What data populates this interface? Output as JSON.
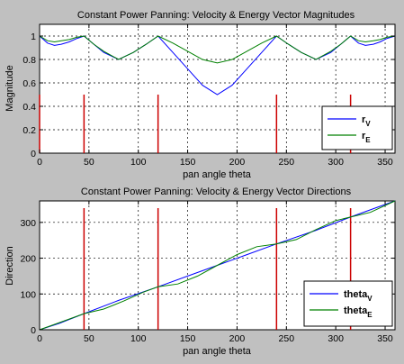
{
  "chart_data": [
    {
      "type": "line",
      "title": "Constant Power Panning: Velocity & Energy Vector Magnitudes",
      "xlabel": "pan angle theta",
      "ylabel": "Magnitude",
      "xlim": [
        0,
        360
      ],
      "ylim": [
        0,
        1.1
      ],
      "xticks": [
        0,
        50,
        100,
        150,
        200,
        250,
        300,
        350
      ],
      "yticks": [
        0,
        0.2,
        0.4,
        0.6,
        0.8,
        1
      ],
      "ytick_labels": [
        "0",
        "0.2",
        "0.4",
        "0.6",
        "0.8",
        "1"
      ],
      "grid": true,
      "legend_position": "lower-right",
      "legend": [
        {
          "text": "r",
          "sub": "V",
          "color": "#0000ff"
        },
        {
          "text": "r",
          "sub": "E",
          "color": "#008000"
        }
      ],
      "series": [
        {
          "label": "r_V",
          "color": "#0000ff",
          "x": [
            0,
            8,
            15,
            22,
            30,
            38,
            45,
            55,
            65,
            80,
            95,
            108,
            120,
            135,
            150,
            165,
            180,
            195,
            210,
            225,
            240,
            252,
            265,
            280,
            295,
            305,
            315,
            323,
            330,
            338,
            345,
            352,
            360
          ],
          "y": [
            1.0,
            0.94,
            0.92,
            0.93,
            0.95,
            0.98,
            1.0,
            0.93,
            0.86,
            0.8,
            0.86,
            0.93,
            1.0,
            0.86,
            0.72,
            0.58,
            0.5,
            0.58,
            0.72,
            0.86,
            1.0,
            0.93,
            0.86,
            0.8,
            0.86,
            0.93,
            1.0,
            0.94,
            0.92,
            0.93,
            0.95,
            0.98,
            1.0
          ]
        },
        {
          "label": "r_E",
          "color": "#008000",
          "x": [
            0,
            8,
            15,
            22,
            30,
            38,
            45,
            55,
            65,
            80,
            95,
            108,
            120,
            135,
            150,
            165,
            180,
            195,
            210,
            225,
            240,
            252,
            265,
            280,
            295,
            305,
            315,
            323,
            330,
            338,
            345,
            352,
            360
          ],
          "y": [
            1.0,
            0.96,
            0.95,
            0.96,
            0.97,
            0.99,
            1.0,
            0.93,
            0.87,
            0.8,
            0.86,
            0.93,
            1.0,
            0.94,
            0.87,
            0.8,
            0.77,
            0.8,
            0.87,
            0.94,
            1.0,
            0.93,
            0.86,
            0.8,
            0.87,
            0.93,
            1.0,
            0.96,
            0.95,
            0.96,
            0.97,
            0.99,
            1.0
          ]
        }
      ],
      "spikes": {
        "color": "#cc0000",
        "x": [
          0,
          45,
          120,
          240,
          315
        ],
        "height": 0.5
      }
    },
    {
      "type": "line",
      "title": "Constant Power Panning: Velocity & Energy Vector Directions",
      "xlabel": "pan angle theta",
      "ylabel": "Direction",
      "xlim": [
        0,
        360
      ],
      "ylim": [
        0,
        360
      ],
      "xticks": [
        0,
        50,
        100,
        150,
        200,
        250,
        300,
        350
      ],
      "yticks": [
        0,
        100,
        200,
        300
      ],
      "ytick_labels": [
        "0",
        "100",
        "200",
        "300"
      ],
      "grid": true,
      "legend_position": "lower-right",
      "legend": [
        {
          "text": "theta",
          "sub": "V",
          "color": "#0000ff"
        },
        {
          "text": "theta",
          "sub": "E",
          "color": "#008000"
        }
      ],
      "series": [
        {
          "label": "theta_V",
          "color": "#0000ff",
          "x": [
            0,
            20,
            45,
            80,
            120,
            150,
            180,
            210,
            240,
            280,
            315,
            340,
            360
          ],
          "y": [
            0,
            18,
            45,
            82,
            120,
            150,
            180,
            210,
            240,
            278,
            315,
            340,
            360
          ]
        },
        {
          "label": "theta_E",
          "color": "#008000",
          "x": [
            0,
            20,
            45,
            65,
            85,
            105,
            120,
            140,
            160,
            180,
            200,
            220,
            240,
            260,
            280,
            300,
            315,
            335,
            360
          ],
          "y": [
            0,
            20,
            45,
            58,
            80,
            105,
            120,
            128,
            150,
            180,
            210,
            232,
            240,
            252,
            280,
            305,
            315,
            328,
            360
          ]
        }
      ],
      "spikes": {
        "color": "#cc0000",
        "x": [
          45,
          120,
          240,
          315
        ],
        "height": 340
      }
    }
  ]
}
